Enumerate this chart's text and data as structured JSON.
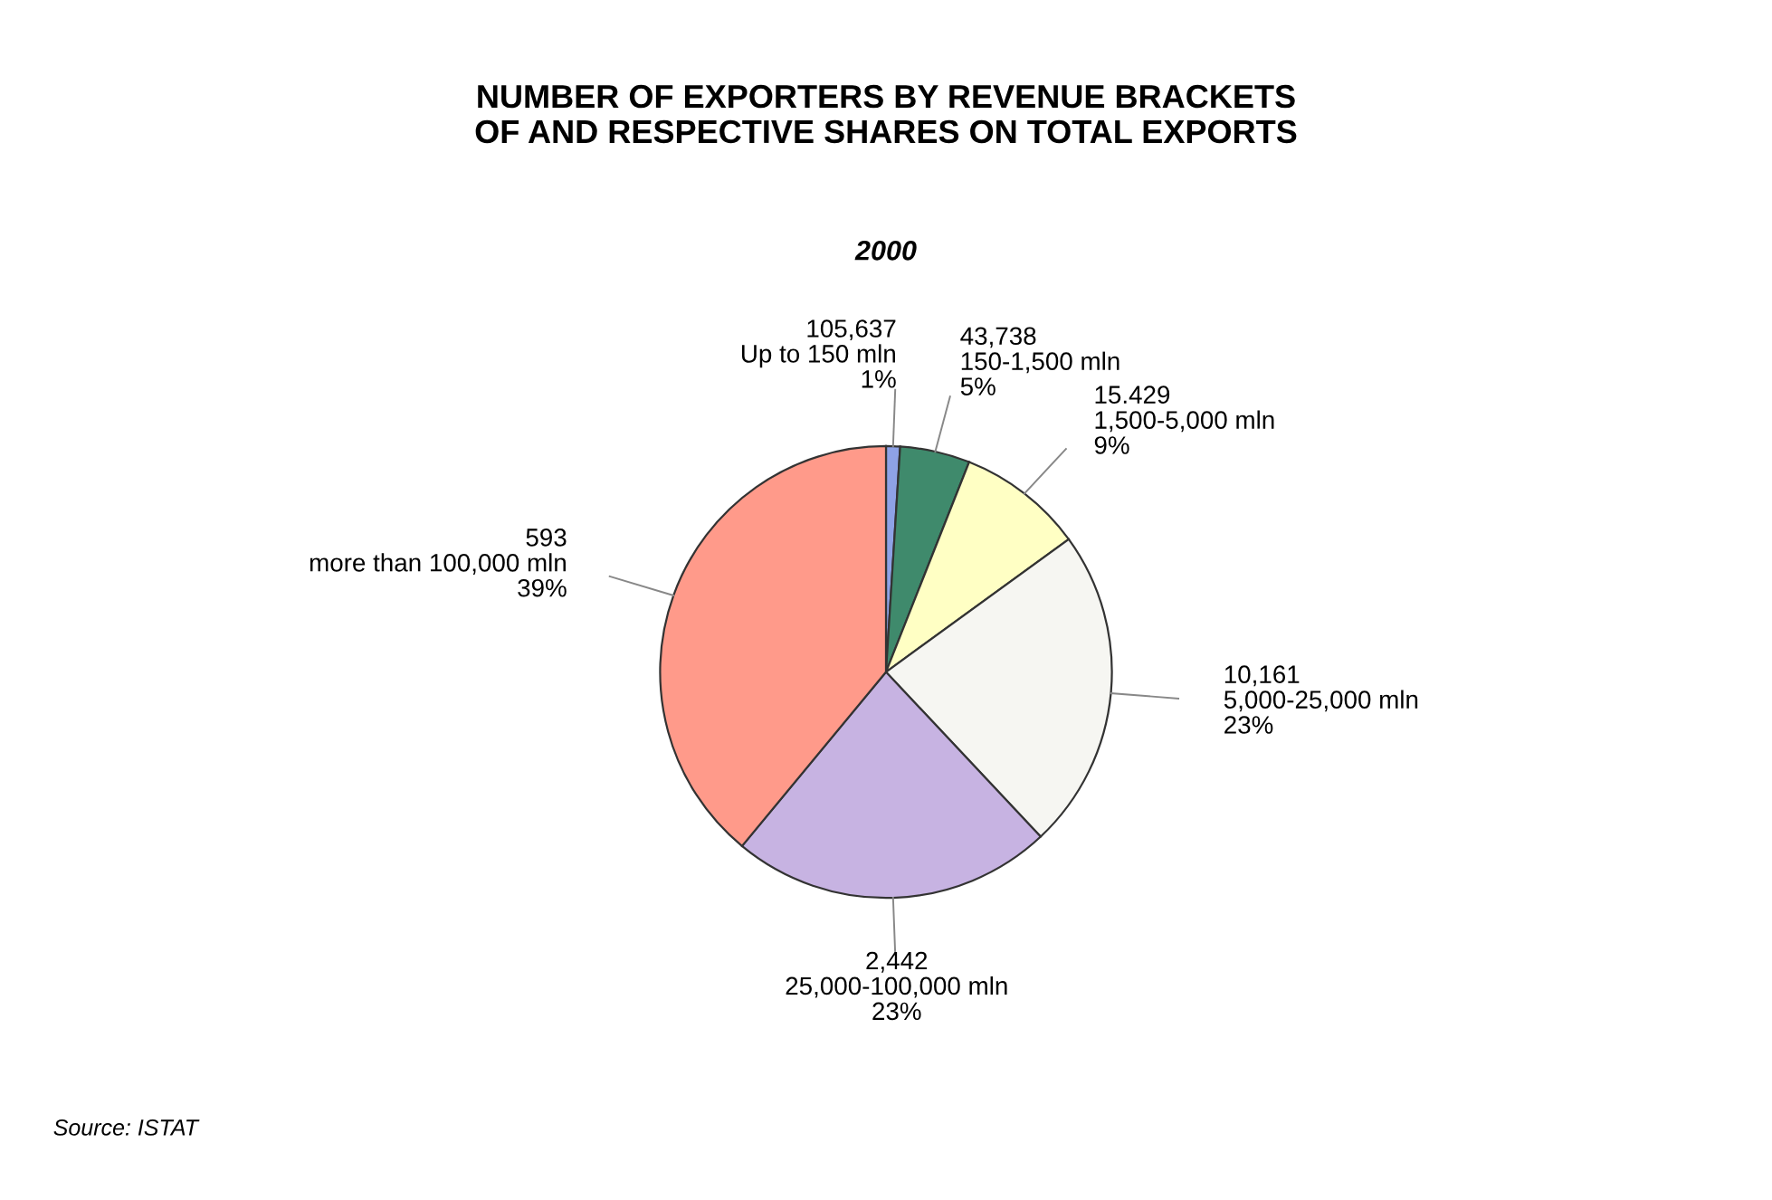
{
  "chart_data": {
    "type": "pie",
    "title": "NUMBER OF EXPORTERS BY REVENUE BRACKETS\nOF AND RESPECTIVE SHARES ON TOTAL EXPORTS",
    "subtitle": "2000",
    "categories": [
      "105,637\nUp to 150 mln",
      "43,738\n150-1,500 mln",
      "15.429\n1,500-5,000 mln",
      "10,161\n5,000-25,000 mln",
      "2,442\n25,000-100,000 mln",
      "593\nmore than 100,000 mln"
    ],
    "values": [
      1,
      5,
      9,
      23,
      23,
      39
    ],
    "value_labels": [
      "1%",
      "5%",
      "9%",
      "23%",
      "23%",
      "39%"
    ],
    "colors": [
      "#8ea2e6",
      "#3f8a6c",
      "#ffffc4",
      "#f6f6f2",
      "#c7b3e2",
      "#ff9a8a"
    ],
    "annotations": [
      "Source: ISTAT"
    ]
  }
}
